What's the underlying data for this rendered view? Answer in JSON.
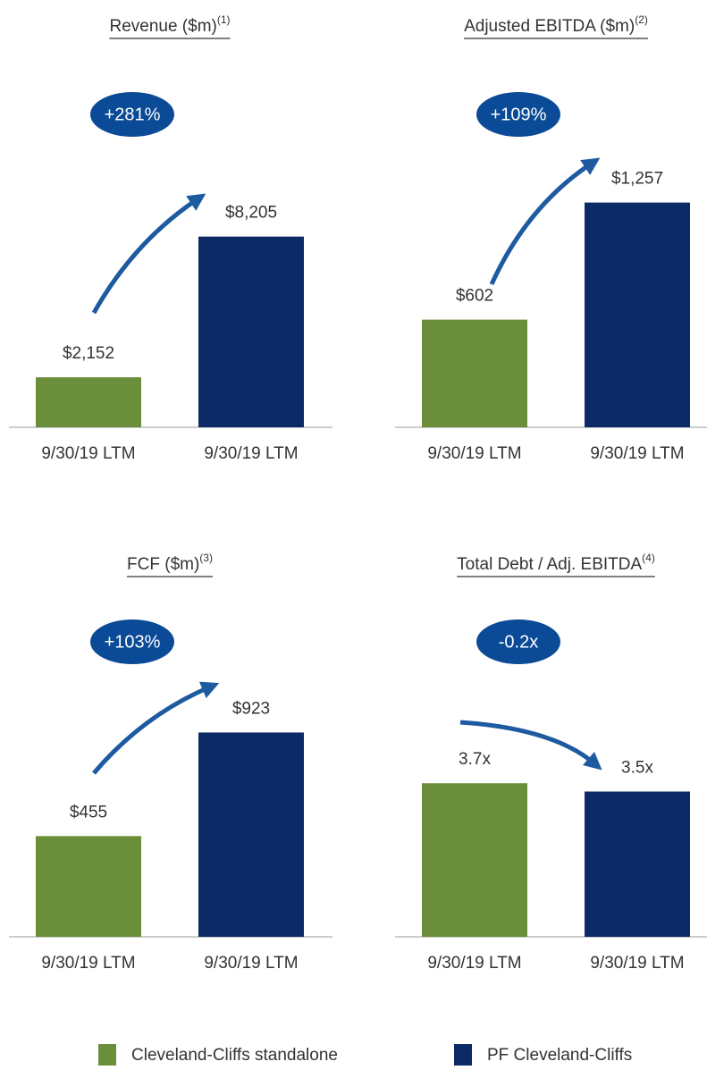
{
  "chart_data": [
    {
      "type": "bar",
      "title": "Revenue ($m)",
      "footnote": "(1)",
      "badge": "+281%",
      "categories": [
        "9/30/19 LTM",
        "9/30/19 LTM"
      ],
      "values": [
        2152,
        8205
      ],
      "value_labels": [
        "$2,152",
        "$8,205"
      ],
      "colors": [
        "#6b8e3a",
        "#0b2a66"
      ],
      "ylim": [
        0,
        10000
      ]
    },
    {
      "type": "bar",
      "title": "Adjusted EBITDA ($m)",
      "footnote": "(2)",
      "badge": "+109%",
      "categories": [
        "9/30/19 LTM",
        "9/30/19 LTM"
      ],
      "values": [
        602,
        1257
      ],
      "value_labels": [
        "$602",
        "$1,257"
      ],
      "colors": [
        "#6b8e3a",
        "#0b2a66"
      ],
      "ylim": [
        0,
        1300
      ]
    },
    {
      "type": "bar",
      "title": "FCF ($m)",
      "footnote": "(3)",
      "badge": "+103%",
      "categories": [
        "9/30/19 LTM",
        "9/30/19 LTM"
      ],
      "values": [
        455,
        923
      ],
      "value_labels": [
        "$455",
        "$923"
      ],
      "colors": [
        "#6b8e3a",
        "#0b2a66"
      ],
      "ylim": [
        0,
        1050
      ]
    },
    {
      "type": "bar",
      "title": "Total Debt / Adj. EBITDA",
      "footnote": "(4)",
      "badge": "-0.2x",
      "categories": [
        "9/30/19 LTM",
        "9/30/19 LTM"
      ],
      "values": [
        3.7,
        3.5
      ],
      "value_labels": [
        "3.7x",
        "3.5x"
      ],
      "colors": [
        "#6b8e3a",
        "#0b2a66"
      ],
      "ylim": [
        0,
        5.6
      ]
    }
  ],
  "legend": {
    "items": [
      {
        "name": "Cleveland-Cliffs standalone",
        "color": "#6b8e3a"
      },
      {
        "name": "PF Cleveland-Cliffs",
        "color": "#0b2a66"
      }
    ]
  }
}
